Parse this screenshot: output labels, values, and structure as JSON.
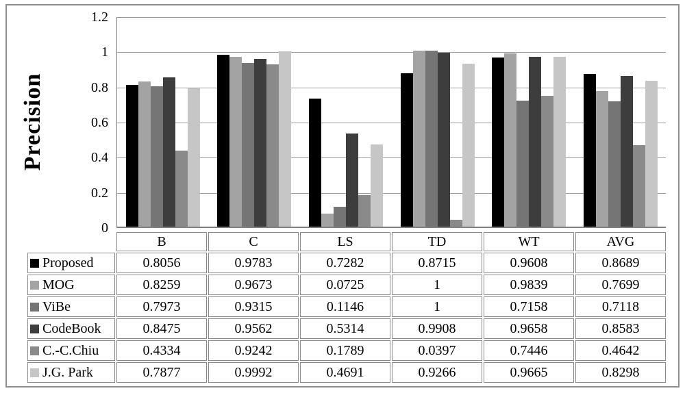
{
  "figure": {
    "background": "#ffffff",
    "border_color": "#8f8f8f",
    "gridline_color": "#9a9a9a",
    "axis_color": "#808080",
    "table_border_color": "#8a8a8a"
  },
  "chart_data": {
    "type": "bar",
    "title": "",
    "xlabel": "",
    "ylabel": "Precision",
    "ylim": [
      0,
      1.2
    ],
    "y_ticks": [
      0,
      0.2,
      0.4,
      0.6,
      0.8,
      1,
      1.2
    ],
    "y_tick_labels": [
      "0",
      "0.2",
      "0.4",
      "0.6",
      "0.8",
      "1",
      "1.2"
    ],
    "grid": true,
    "legend_position": "data-table-left",
    "categories": [
      "B",
      "C",
      "LS",
      "TD",
      "WT",
      "AVG"
    ],
    "series": [
      {
        "name": "Proposed",
        "color": "#000000",
        "values": [
          0.8056,
          0.9783,
          0.7282,
          0.8715,
          0.9608,
          0.8689
        ]
      },
      {
        "name": "MOG",
        "color": "#a3a3a3",
        "values": [
          0.8259,
          0.9673,
          0.0725,
          1,
          0.9839,
          0.7699
        ]
      },
      {
        "name": "ViBe",
        "color": "#757575",
        "values": [
          0.7973,
          0.9315,
          0.1146,
          1,
          0.7158,
          0.7118
        ]
      },
      {
        "name": "CodeBook",
        "color": "#3d3d3d",
        "values": [
          0.8475,
          0.9562,
          0.5314,
          0.9908,
          0.9658,
          0.8583
        ]
      },
      {
        "name": "C.-C.Chiu",
        "color": "#8a8a8a",
        "values": [
          0.4334,
          0.9242,
          0.1789,
          0.0397,
          0.7446,
          0.4642
        ]
      },
      {
        "name": "J.G. Park",
        "color": "#c6c6c6",
        "values": [
          0.7877,
          0.9992,
          0.4691,
          0.9266,
          0.9665,
          0.8298
        ]
      }
    ]
  }
}
